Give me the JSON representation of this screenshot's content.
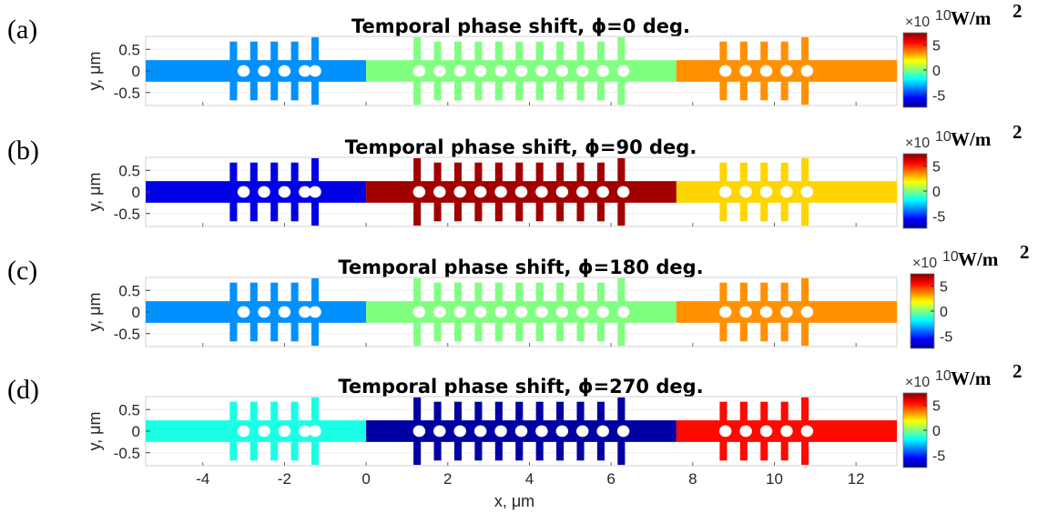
{
  "colorbar": {
    "multiplier": "×10",
    "exponent": "10",
    "unit": "W/m",
    "unit_exp": "2",
    "range": [
      -7.5,
      7.5
    ],
    "ticks": [
      "5",
      "0",
      "-5"
    ],
    "tick_values": [
      5,
      0,
      -5
    ],
    "colormap": "jet"
  },
  "axes": {
    "xlabel": "x, μm",
    "ylabel": "y, μm",
    "xlim": [
      -5.4,
      13.0
    ],
    "ylim": [
      -0.8,
      0.8
    ],
    "xticks": [
      "-4",
      "-2",
      "0",
      "2",
      "4",
      "6",
      "8",
      "10",
      "12"
    ],
    "xtick_values": [
      -4,
      -2,
      0,
      2,
      4,
      6,
      8,
      10,
      12
    ],
    "yticks": [
      "0.5",
      "0",
      "-0.5"
    ],
    "ytick_values": [
      0.5,
      0,
      -0.5
    ]
  },
  "panels": [
    {
      "label": "(a)",
      "title": "Temporal phase shift, ϕ=0 deg."
    },
    {
      "label": "(b)",
      "title": "Temporal phase shift, ϕ=90 deg."
    },
    {
      "label": "(c)",
      "title": "Temporal phase shift, ϕ=180 deg."
    },
    {
      "label": "(d)",
      "title": "Temporal phase shift, ϕ=270 deg."
    }
  ],
  "chart_data": [
    {
      "type": "heatmap",
      "title": "Temporal phase shift, ϕ=0 deg.",
      "xlabel": "",
      "ylabel": "y, μm",
      "segments": [
        {
          "region": "left",
          "x": [
            -5.4,
            0
          ],
          "field": -3.5
        },
        {
          "region": "middle",
          "x": [
            0,
            7.6
          ],
          "field": 0
        },
        {
          "region": "right",
          "x": [
            7.6,
            13
          ],
          "field": 3.5
        }
      ]
    },
    {
      "type": "heatmap",
      "title": "Temporal phase shift, ϕ=90 deg.",
      "xlabel": "",
      "ylabel": "y, μm",
      "segments": [
        {
          "region": "left",
          "x": [
            -5.4,
            0
          ],
          "field": -6
        },
        {
          "region": "middle",
          "x": [
            0,
            7.6
          ],
          "field": 7
        },
        {
          "region": "right",
          "x": [
            7.6,
            13
          ],
          "field": 2.5
        }
      ]
    },
    {
      "type": "heatmap",
      "title": "Temporal phase shift, ϕ=180 deg.",
      "xlabel": "",
      "ylabel": "y, μm",
      "segments": [
        {
          "region": "left",
          "x": [
            -5.4,
            0
          ],
          "field": -3.5
        },
        {
          "region": "middle",
          "x": [
            0,
            7.6
          ],
          "field": 0
        },
        {
          "region": "right",
          "x": [
            7.6,
            13
          ],
          "field": 3.5
        }
      ]
    },
    {
      "type": "heatmap",
      "title": "Temporal phase shift, ϕ=270 deg.",
      "xlabel": "x, μm",
      "ylabel": "y, μm",
      "segments": [
        {
          "region": "left",
          "x": [
            -5.4,
            0
          ],
          "field": -1.5
        },
        {
          "region": "middle",
          "x": [
            0,
            7.6
          ],
          "field": -7
        },
        {
          "region": "right",
          "x": [
            7.6,
            13
          ],
          "field": 5.5
        }
      ]
    }
  ]
}
